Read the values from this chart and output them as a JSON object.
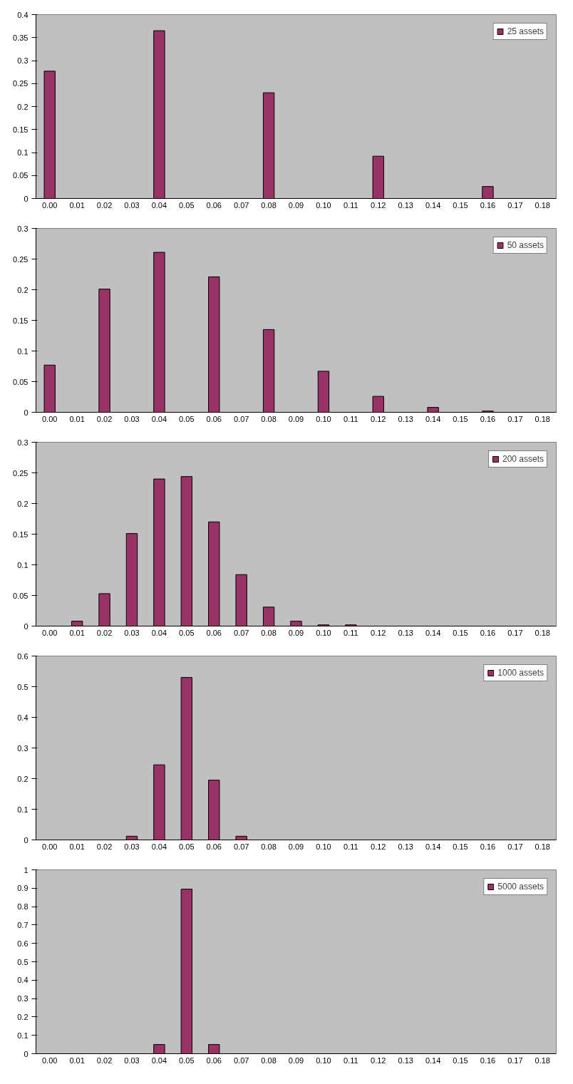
{
  "chart_data": [
    {
      "type": "bar",
      "categories": [
        "0.00",
        "0.01",
        "0.02",
        "0.03",
        "0.04",
        "0.05",
        "0.06",
        "0.07",
        "0.08",
        "0.09",
        "0.10",
        "0.11",
        "0.12",
        "0.13",
        "0.14",
        "0.15",
        "0.16",
        "0.17",
        "0.18"
      ],
      "series": [
        {
          "name": "25 assets",
          "color": "#993366",
          "values": [
            0.277,
            null,
            null,
            null,
            0.365,
            null,
            null,
            null,
            0.23,
            null,
            null,
            null,
            0.092,
            null,
            null,
            null,
            0.026,
            null,
            null
          ]
        }
      ],
      "ylim": [
        0,
        0.4
      ],
      "yticks": [
        0,
        0.05,
        0.1,
        0.15,
        0.2,
        0.25,
        0.3,
        0.35,
        0.4
      ],
      "grid": false,
      "legend": "top right"
    },
    {
      "type": "bar",
      "categories": [
        "0.00",
        "0.01",
        "0.02",
        "0.03",
        "0.04",
        "0.05",
        "0.06",
        "0.07",
        "0.08",
        "0.09",
        "0.10",
        "0.11",
        "0.12",
        "0.13",
        "0.14",
        "0.15",
        "0.16",
        "0.17",
        "0.18"
      ],
      "series": [
        {
          "name": "50 assets",
          "color": "#993366",
          "values": [
            0.077,
            null,
            0.201,
            null,
            0.261,
            null,
            0.221,
            null,
            0.135,
            null,
            0.067,
            null,
            0.026,
            null,
            0.008,
            null,
            0.002,
            null,
            null
          ]
        }
      ],
      "ylim": [
        0,
        0.3
      ],
      "yticks": [
        0,
        0.05,
        0.1,
        0.15,
        0.2,
        0.25,
        0.3
      ],
      "grid": false,
      "legend": "top right"
    },
    {
      "type": "bar",
      "categories": [
        "0.00",
        "0.01",
        "0.02",
        "0.03",
        "0.04",
        "0.05",
        "0.06",
        "0.07",
        "0.08",
        "0.09",
        "0.10",
        "0.11",
        "0.12",
        "0.13",
        "0.14",
        "0.15",
        "0.16",
        "0.17",
        "0.18"
      ],
      "series": [
        {
          "name": "200 assets",
          "color": "#993366",
          "values": [
            null,
            0.008,
            0.053,
            0.151,
            0.24,
            0.244,
            0.17,
            0.084,
            0.031,
            0.008,
            0.002,
            0.002,
            null,
            null,
            null,
            null,
            null,
            null,
            null
          ]
        }
      ],
      "ylim": [
        0,
        0.3
      ],
      "yticks": [
        0,
        0.05,
        0.1,
        0.15,
        0.2,
        0.25,
        0.3
      ],
      "grid": false,
      "legend": "top right"
    },
    {
      "type": "bar",
      "categories": [
        "0.00",
        "0.01",
        "0.02",
        "0.03",
        "0.04",
        "0.05",
        "0.06",
        "0.07",
        "0.08",
        "0.09",
        "0.10",
        "0.11",
        "0.12",
        "0.13",
        "0.14",
        "0.15",
        "0.16",
        "0.17",
        "0.18"
      ],
      "series": [
        {
          "name": "1000 assets",
          "color": "#993366",
          "values": [
            null,
            null,
            null,
            0.012,
            0.245,
            0.53,
            0.195,
            0.012,
            null,
            null,
            null,
            null,
            null,
            null,
            null,
            null,
            null,
            null,
            null
          ]
        }
      ],
      "ylim": [
        0,
        0.6
      ],
      "yticks": [
        0,
        0.1,
        0.2,
        0.3,
        0.4,
        0.5,
        0.6
      ],
      "grid": false,
      "legend": "top right"
    },
    {
      "type": "bar",
      "categories": [
        "0.00",
        "0.01",
        "0.02",
        "0.03",
        "0.04",
        "0.05",
        "0.06",
        "0.07",
        "0.08",
        "0.09",
        "0.10",
        "0.11",
        "0.12",
        "0.13",
        "0.14",
        "0.15",
        "0.16",
        "0.17",
        "0.18"
      ],
      "series": [
        {
          "name": "5000 assets",
          "color": "#993366",
          "values": [
            null,
            null,
            null,
            null,
            0.05,
            0.895,
            0.05,
            null,
            null,
            null,
            null,
            null,
            null,
            null,
            null,
            null,
            null,
            null,
            null
          ]
        }
      ],
      "ylim": [
        0,
        1
      ],
      "yticks": [
        0,
        0.1,
        0.2,
        0.3,
        0.4,
        0.5,
        0.6,
        0.7,
        0.8,
        0.9,
        1
      ],
      "grid": false,
      "legend": "top right"
    }
  ]
}
